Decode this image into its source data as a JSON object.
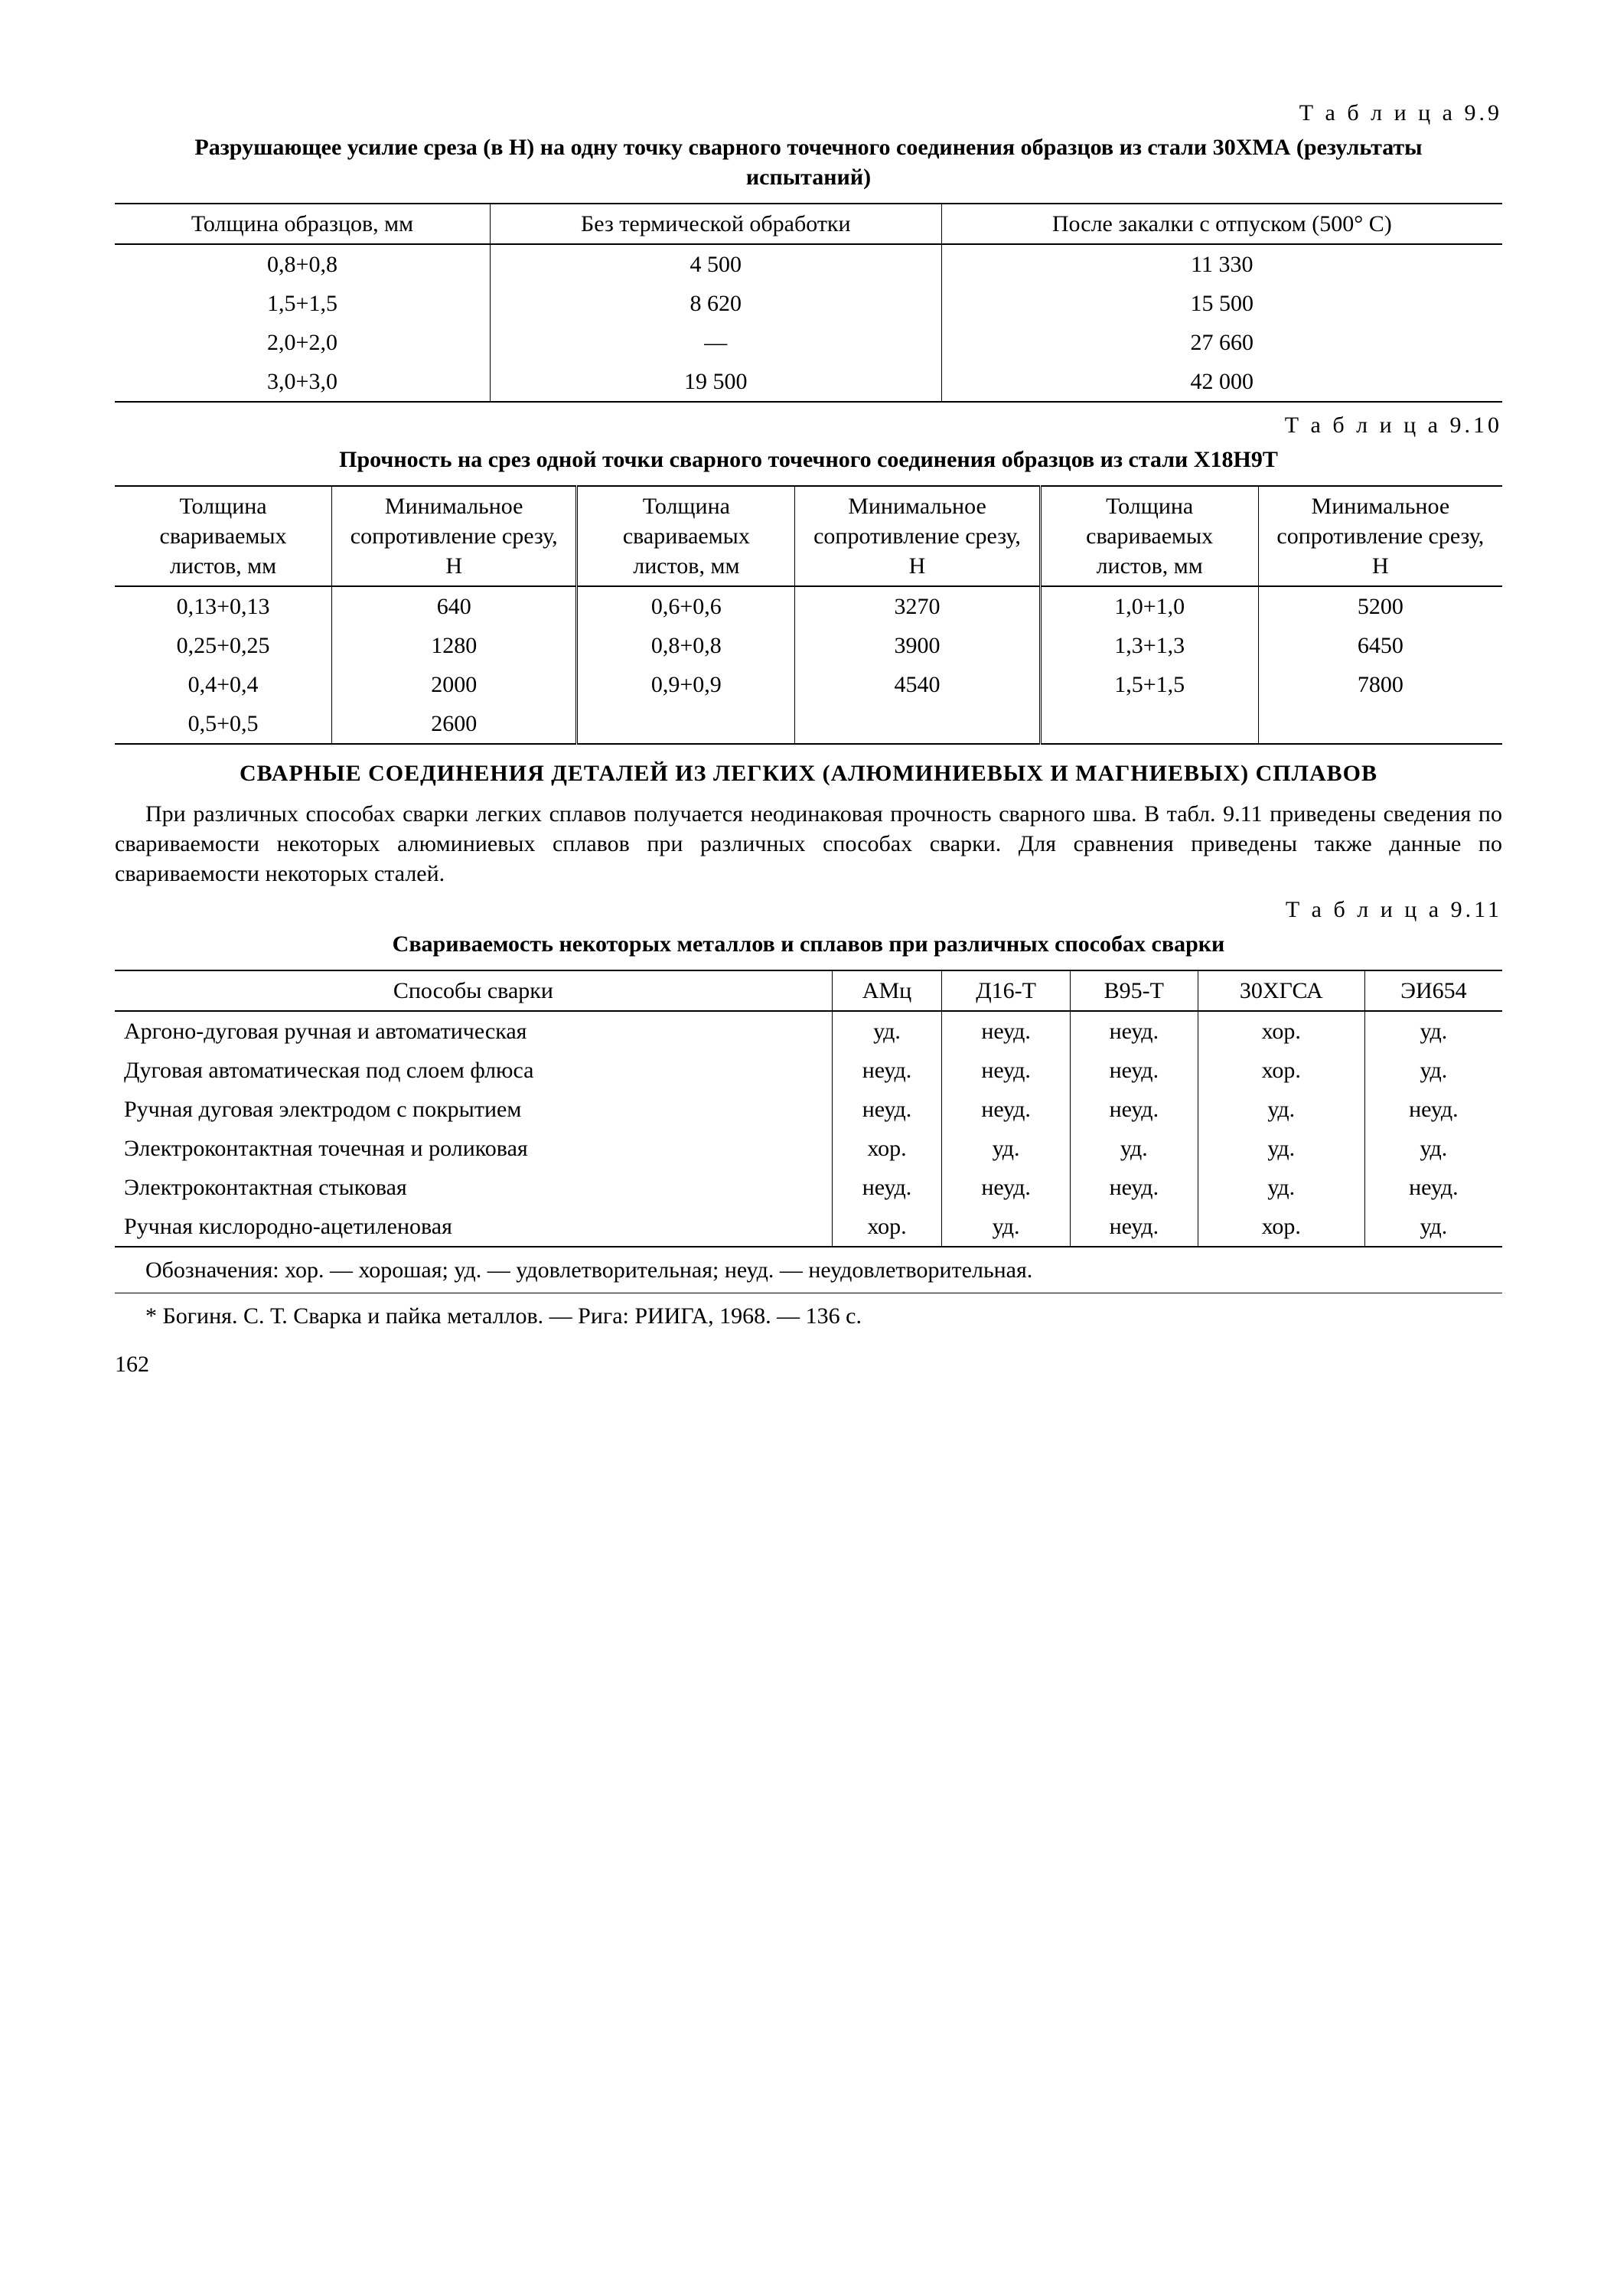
{
  "table99": {
    "label": "Т а б л и ц а  9.9",
    "caption": "Разрушающее усилие среза (в Н) на одну точку сварного точечного соединения образцов из стали 30ХМА (результаты испытаний)",
    "headers": [
      "Толщина образцов, мм",
      "Без термической обработки",
      "После закалки с отпуском (500° С)"
    ],
    "rows": [
      [
        "0,8+0,8",
        "4 500",
        "11 330"
      ],
      [
        "1,5+1,5",
        "8 620",
        "15 500"
      ],
      [
        "2,0+2,0",
        "—",
        "27 660"
      ],
      [
        "3,0+3,0",
        "19 500",
        "42 000"
      ]
    ]
  },
  "table910": {
    "label": "Т а б л и ц а  9.10",
    "caption": "Прочность на срез одной точки сварного точечного соединения образцов из стали Х18Н9Т",
    "headers": [
      "Толщина свариваемых листов, мм",
      "Минимальное сопротивление срезу, Н",
      "Толщина свариваемых листов, мм",
      "Минимальное сопротивление срезу, Н",
      "Толщина свариваемых листов, мм",
      "Минимальное сопротивление срезу, Н"
    ],
    "rows": [
      [
        "0,13+0,13",
        "640",
        "0,6+0,6",
        "3270",
        "1,0+1,0",
        "5200"
      ],
      [
        "0,25+0,25",
        "1280",
        "0,8+0,8",
        "3900",
        "1,3+1,3",
        "6450"
      ],
      [
        "0,4+0,4",
        "2000",
        "0,9+0,9",
        "4540",
        "1,5+1,5",
        "7800"
      ],
      [
        "0,5+0,5",
        "2600",
        "",
        "",
        "",
        ""
      ]
    ]
  },
  "sectionHeading": "СВАРНЫЕ СОЕДИНЕНИЯ ДЕТАЛЕЙ ИЗ ЛЕГКИХ (АЛЮМИНИЕВЫХ И МАГНИЕВЫХ) СПЛАВОВ",
  "paragraph": "При различных способах сварки легких сплавов получается неодинаковая прочность сварного шва. В табл. 9.11 приведены сведения по свариваемости некоторых алюминиевых сплавов при различных способах сварки. Для сравнения приведены также данные по свариваемости некоторых сталей.",
  "table911": {
    "label": "Т а б л и ц а  9.11",
    "caption": "Свариваемость некоторых металлов и сплавов при различных способах сварки",
    "headers": [
      "Способы сварки",
      "АМц",
      "Д16-Т",
      "В95-Т",
      "30ХГСА",
      "ЭИ654"
    ],
    "rows": [
      [
        "Аргоно-дуговая ручная и автоматическая",
        "уд.",
        "неуд.",
        "неуд.",
        "хор.",
        "уд."
      ],
      [
        "Дуговая автоматическая под слоем флюса",
        "неуд.",
        "неуд.",
        "неуд.",
        "хор.",
        "уд."
      ],
      [
        "Ручная дуговая электродом с покрытием",
        "неуд.",
        "неуд.",
        "неуд.",
        "уд.",
        "неуд."
      ],
      [
        "Электроконтактная точечная и роликовая",
        "хор.",
        "уд.",
        "уд.",
        "уд.",
        "уд."
      ],
      [
        "Электроконтактная стыковая",
        "неуд.",
        "неуд.",
        "неуд.",
        "уд.",
        "неуд."
      ],
      [
        "Ручная кислородно-ацетиленовая",
        "хор.",
        "уд.",
        "неуд.",
        "хор.",
        "уд."
      ]
    ],
    "legend": "Обозначения: хор. — хорошая; уд. — удовлетворительная; неуд. — неудовлетворительная."
  },
  "footnote": "* Богиня. С. Т. Сварка и пайка металлов. — Рига: РИИГА, 1968. — 136 с.",
  "pageNumber": "162"
}
